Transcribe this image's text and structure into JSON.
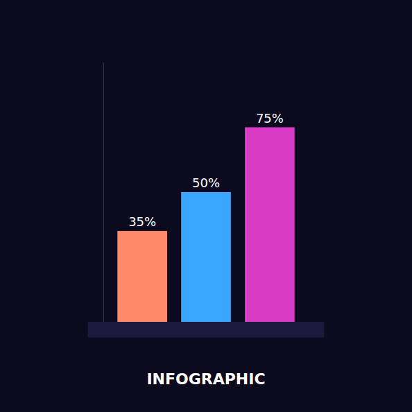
{
  "chart_data": {
    "type": "bar",
    "title": "INFOGRAPHIC",
    "categories": [
      null,
      null,
      null
    ],
    "values": [
      35,
      50,
      75
    ],
    "value_labels": [
      "35%",
      "50%",
      "75%"
    ],
    "colors": [
      "#ff8a6a",
      "#3aa6ff",
      "#d83cc4"
    ],
    "ylim": [
      0,
      100
    ],
    "grid": false,
    "data_labels": true,
    "tick_labels": false
  }
}
